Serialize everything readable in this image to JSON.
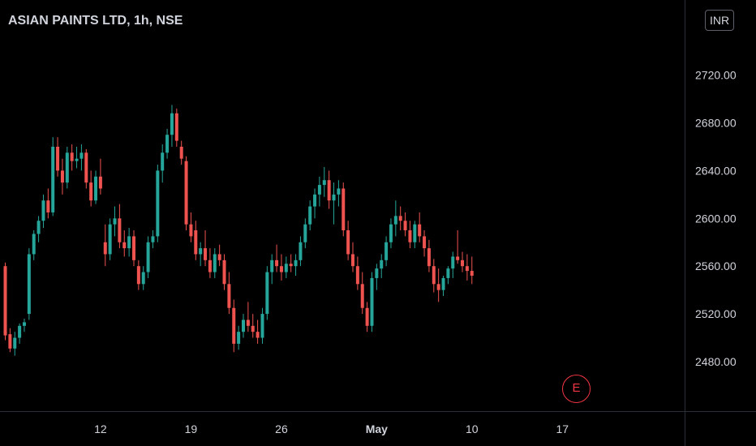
{
  "header": {
    "title": "ASIAN PAINTS LTD, 1h, NSE",
    "currency": "INR"
  },
  "earnings_marker": "E",
  "colors": {
    "background": "#000000",
    "up": "#26a69a",
    "down": "#ef5350",
    "axis_text": "#d1d4dc",
    "axis_line": "#2a2e39"
  },
  "chart_data": {
    "type": "candlestick",
    "title": "ASIAN PAINTS LTD, 1h, NSE",
    "y_ticks": [
      2480,
      2520,
      2560,
      2600,
      2640,
      2680,
      2720
    ],
    "y_tick_labels": [
      "2480.00",
      "2520.00",
      "2560.00",
      "2600.00",
      "2640.00",
      "2680.00",
      "2720.00"
    ],
    "x_ticks": [
      {
        "label": "12",
        "index": 20,
        "bold": false
      },
      {
        "label": "19",
        "index": 39,
        "bold": false
      },
      {
        "label": "26",
        "index": 58,
        "bold": false
      },
      {
        "label": "May",
        "index": 78,
        "bold": true
      },
      {
        "label": "10",
        "index": 98,
        "bold": false
      },
      {
        "label": "17",
        "index": 117,
        "bold": false
      }
    ],
    "ylim": [
      2448,
      2760
    ],
    "grid": false,
    "candles": [
      [
        2560,
        2563,
        2498,
        2502
      ],
      [
        2503,
        2508,
        2488,
        2491
      ],
      [
        2491,
        2505,
        2485,
        2500
      ],
      [
        2500,
        2512,
        2495,
        2510
      ],
      [
        2510,
        2516,
        2505,
        2513
      ],
      [
        2520,
        2575,
        2515,
        2570
      ],
      [
        2570,
        2590,
        2565,
        2587
      ],
      [
        2587,
        2602,
        2580,
        2598
      ],
      [
        2598,
        2620,
        2592,
        2615
      ],
      [
        2615,
        2625,
        2600,
        2605
      ],
      [
        2605,
        2668,
        2602,
        2660
      ],
      [
        2660,
        2668,
        2635,
        2640
      ],
      [
        2640,
        2650,
        2620,
        2630
      ],
      [
        2630,
        2660,
        2625,
        2655
      ],
      [
        2655,
        2662,
        2640,
        2648
      ],
      [
        2648,
        2660,
        2642,
        2650
      ],
      [
        2650,
        2662,
        2640,
        2655
      ],
      [
        2655,
        2658,
        2625,
        2630
      ],
      [
        2630,
        2640,
        2610,
        2615
      ],
      [
        2615,
        2640,
        2612,
        2635
      ],
      [
        2635,
        2650,
        2620,
        2625
      ],
      [
        2580,
        2595,
        2560,
        2570
      ],
      [
        2570,
        2600,
        2565,
        2595
      ],
      [
        2595,
        2610,
        2585,
        2600
      ],
      [
        2600,
        2612,
        2575,
        2580
      ],
      [
        2580,
        2590,
        2568,
        2575
      ],
      [
        2575,
        2592,
        2568,
        2585
      ],
      [
        2585,
        2590,
        2560,
        2565
      ],
      [
        2560,
        2565,
        2540,
        2545
      ],
      [
        2545,
        2560,
        2540,
        2555
      ],
      [
        2555,
        2585,
        2550,
        2580
      ],
      [
        2580,
        2590,
        2575,
        2585
      ],
      [
        2585,
        2645,
        2580,
        2640
      ],
      [
        2640,
        2662,
        2630,
        2655
      ],
      [
        2655,
        2675,
        2650,
        2670
      ],
      [
        2670,
        2695,
        2660,
        2688
      ],
      [
        2688,
        2692,
        2660,
        2665
      ],
      [
        2660,
        2665,
        2645,
        2650
      ],
      [
        2648,
        2652,
        2590,
        2595
      ],
      [
        2595,
        2605,
        2580,
        2585
      ],
      [
        2590,
        2598,
        2565,
        2570
      ],
      [
        2570,
        2580,
        2560,
        2575
      ],
      [
        2575,
        2590,
        2560,
        2565
      ],
      [
        2565,
        2575,
        2550,
        2555
      ],
      [
        2555,
        2575,
        2550,
        2570
      ],
      [
        2570,
        2578,
        2560,
        2565
      ],
      [
        2565,
        2570,
        2540,
        2545
      ],
      [
        2545,
        2555,
        2520,
        2525
      ],
      [
        2525,
        2532,
        2488,
        2495
      ],
      [
        2495,
        2510,
        2490,
        2505
      ],
      [
        2505,
        2520,
        2500,
        2515
      ],
      [
        2515,
        2530,
        2505,
        2510
      ],
      [
        2510,
        2520,
        2500,
        2505
      ],
      [
        2505,
        2515,
        2495,
        2500
      ],
      [
        2500,
        2525,
        2495,
        2520
      ],
      [
        2520,
        2560,
        2515,
        2555
      ],
      [
        2555,
        2570,
        2545,
        2565
      ],
      [
        2565,
        2578,
        2555,
        2560
      ],
      [
        2560,
        2570,
        2548,
        2555
      ],
      [
        2555,
        2568,
        2550,
        2562
      ],
      [
        2562,
        2570,
        2555,
        2560
      ],
      [
        2560,
        2570,
        2552,
        2565
      ],
      [
        2565,
        2585,
        2560,
        2580
      ],
      [
        2580,
        2600,
        2575,
        2595
      ],
      [
        2595,
        2615,
        2590,
        2610
      ],
      [
        2610,
        2625,
        2600,
        2620
      ],
      [
        2620,
        2635,
        2610,
        2628
      ],
      [
        2628,
        2643,
        2618,
        2632
      ],
      [
        2632,
        2640,
        2608,
        2615
      ],
      [
        2615,
        2630,
        2595,
        2620
      ],
      [
        2620,
        2632,
        2610,
        2625
      ],
      [
        2625,
        2630,
        2585,
        2590
      ],
      [
        2590,
        2598,
        2565,
        2570
      ],
      [
        2570,
        2580,
        2555,
        2560
      ],
      [
        2560,
        2568,
        2540,
        2545
      ],
      [
        2545,
        2555,
        2520,
        2525
      ],
      [
        2525,
        2530,
        2505,
        2510
      ],
      [
        2510,
        2555,
        2505,
        2550
      ],
      [
        2550,
        2562,
        2540,
        2558
      ],
      [
        2558,
        2570,
        2550,
        2565
      ],
      [
        2565,
        2585,
        2560,
        2580
      ],
      [
        2580,
        2600,
        2575,
        2595
      ],
      [
        2595,
        2615,
        2585,
        2602
      ],
      [
        2602,
        2610,
        2590,
        2598
      ],
      [
        2598,
        2605,
        2585,
        2590
      ],
      [
        2590,
        2598,
        2575,
        2580
      ],
      [
        2580,
        2598,
        2575,
        2595
      ],
      [
        2595,
        2605,
        2580,
        2585
      ],
      [
        2585,
        2590,
        2568,
        2575
      ],
      [
        2575,
        2582,
        2555,
        2560
      ],
      [
        2560,
        2566,
        2538,
        2545
      ],
      [
        2545,
        2558,
        2530,
        2540
      ],
      [
        2540,
        2552,
        2535,
        2550
      ],
      [
        2550,
        2560,
        2545,
        2558
      ],
      [
        2558,
        2572,
        2550,
        2568
      ],
      [
        2568,
        2590,
        2562,
        2565
      ],
      [
        2565,
        2572,
        2555,
        2560
      ],
      [
        2560,
        2570,
        2548,
        2556
      ],
      [
        2556,
        2568,
        2545,
        2552
      ]
    ]
  }
}
